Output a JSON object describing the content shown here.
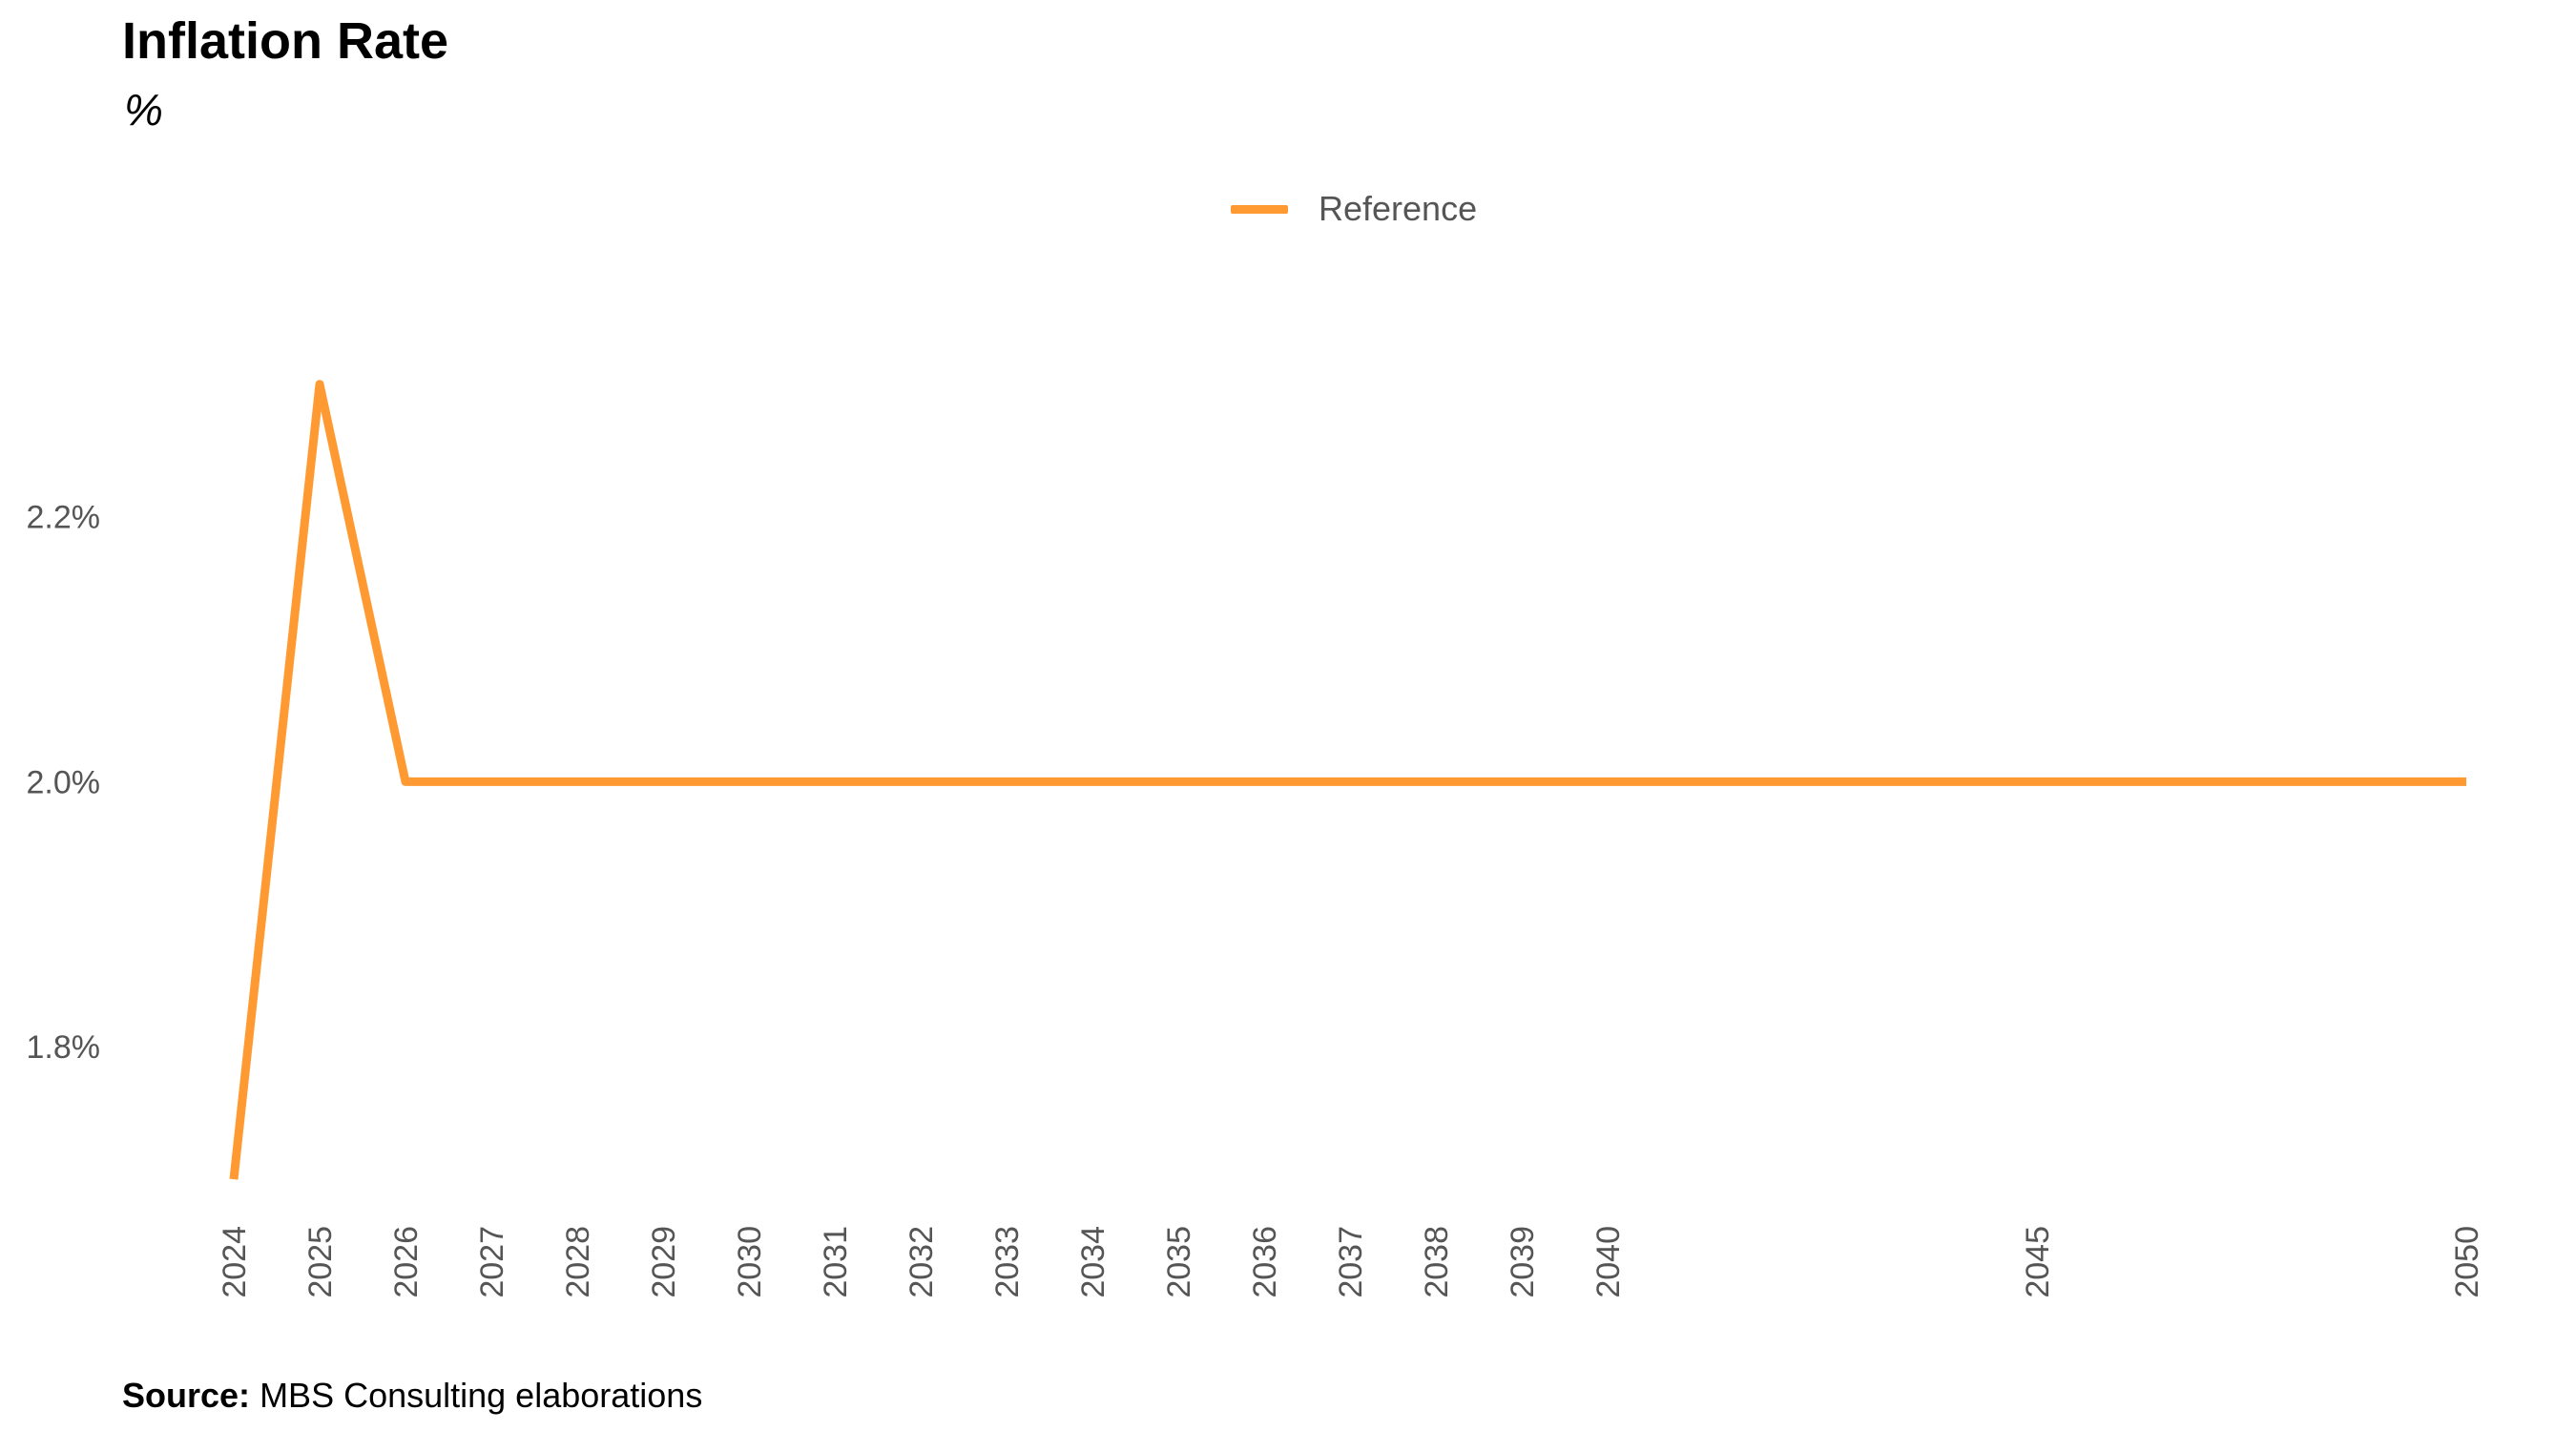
{
  "page": {
    "title": "Inflation Rate",
    "subtitle": "%",
    "source_label": "Source:",
    "source_text": "MBS Consulting elaborations"
  },
  "legend": {
    "label": "Reference",
    "color": "#FF9A33",
    "position": "top-center"
  },
  "chart_data": {
    "type": "line",
    "title": "Inflation Rate",
    "subtitle": "%",
    "xlabel": "",
    "ylabel": "",
    "grid": false,
    "legend_position": "top-center",
    "ylim": [
      1.69,
      2.41
    ],
    "xlim": [
      2024,
      2050
    ],
    "y_ticks": [
      1.8,
      2.0,
      2.2
    ],
    "y_tick_labels": [
      "1.8%",
      "2.0%",
      "2.2%"
    ],
    "x_ticks": [
      2024,
      2025,
      2026,
      2027,
      2028,
      2029,
      2030,
      2031,
      2032,
      2033,
      2034,
      2035,
      2036,
      2037,
      2038,
      2039,
      2040,
      2045,
      2050
    ],
    "x_tick_labels": [
      "2024",
      "2025",
      "2026",
      "2027",
      "2028",
      "2029",
      "2030",
      "2031",
      "2032",
      "2033",
      "2034",
      "2035",
      "2036",
      "2037",
      "2038",
      "2039",
      "2040",
      "2045",
      "2050"
    ],
    "series": [
      {
        "name": "Reference",
        "color": "#FF9A33",
        "x": [
          2024,
          2025,
          2026,
          2027,
          2028,
          2029,
          2030,
          2031,
          2032,
          2033,
          2034,
          2035,
          2036,
          2037,
          2038,
          2039,
          2040,
          2041,
          2042,
          2043,
          2044,
          2045,
          2046,
          2047,
          2048,
          2049,
          2050
        ],
        "values": [
          1.7,
          2.3,
          2.0,
          2.0,
          2.0,
          2.0,
          2.0,
          2.0,
          2.0,
          2.0,
          2.0,
          2.0,
          2.0,
          2.0,
          2.0,
          2.0,
          2.0,
          2.0,
          2.0,
          2.0,
          2.0,
          2.0,
          2.0,
          2.0,
          2.0,
          2.0,
          2.0
        ]
      }
    ]
  }
}
